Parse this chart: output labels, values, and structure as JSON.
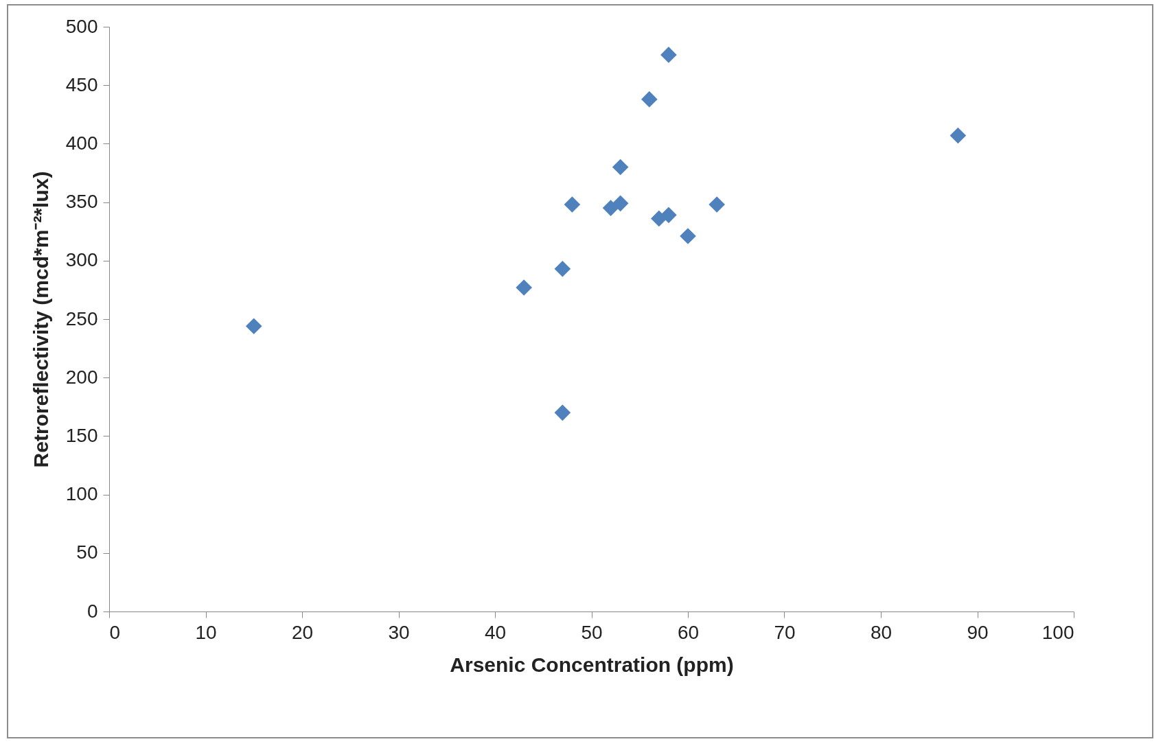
{
  "chart_data": {
    "type": "scatter",
    "xlabel": "Arsenic Concentration (ppm)",
    "ylabel": "Retroreflectivity (mcd*m⁻²*lux)",
    "x": [
      15,
      43,
      47,
      47,
      48,
      52,
      53,
      53,
      56,
      58,
      57,
      58,
      60,
      63,
      88
    ],
    "series": [
      {
        "color": "#4f81bd",
        "values": [
          244,
          277,
          293,
          170,
          348,
          345,
          349,
          380,
          438,
          476,
          336,
          339,
          321,
          348,
          407
        ]
      }
    ],
    "xlim": [
      0,
      100
    ],
    "xticks": [
      0,
      10,
      20,
      30,
      40,
      50,
      60,
      70,
      80,
      90,
      100
    ],
    "ylim": [
      0,
      500
    ],
    "yticks": [
      0,
      50,
      100,
      150,
      200,
      250,
      300,
      350,
      400,
      450,
      500
    ],
    "marker": "diamond",
    "grid": false,
    "legend": false
  }
}
